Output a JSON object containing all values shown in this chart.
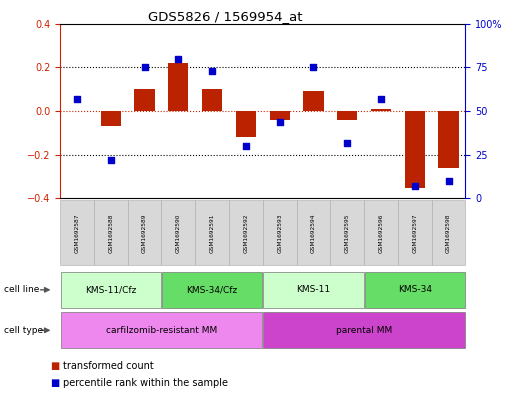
{
  "title": "GDS5826 / 1569954_at",
  "samples": [
    "GSM1692587",
    "GSM1692588",
    "GSM1692589",
    "GSM1692590",
    "GSM1692591",
    "GSM1692592",
    "GSM1692593",
    "GSM1692594",
    "GSM1692595",
    "GSM1692596",
    "GSM1692597",
    "GSM1692598"
  ],
  "bar_values": [
    0.0,
    -0.07,
    0.1,
    0.22,
    0.1,
    -0.12,
    -0.04,
    0.09,
    -0.04,
    0.01,
    -0.35,
    -0.26
  ],
  "dot_values": [
    57,
    22,
    75,
    80,
    73,
    30,
    44,
    75,
    32,
    57,
    7,
    10
  ],
  "bar_color": "#bb2200",
  "dot_color": "#0000cc",
  "ylim_left": [
    -0.4,
    0.4
  ],
  "ylim_right": [
    0,
    100
  ],
  "yticks_left": [
    -0.4,
    -0.2,
    0.0,
    0.2,
    0.4
  ],
  "yticks_right": [
    0,
    25,
    50,
    75,
    100
  ],
  "ytick_labels_right": [
    "0",
    "25",
    "50",
    "75",
    "100%"
  ],
  "cell_line_groups": [
    {
      "label": "KMS-11/Cfz",
      "start": 0,
      "end": 3,
      "color": "#ccffcc"
    },
    {
      "label": "KMS-34/Cfz",
      "start": 3,
      "end": 6,
      "color": "#66dd66"
    },
    {
      "label": "KMS-11",
      "start": 6,
      "end": 9,
      "color": "#ccffcc"
    },
    {
      "label": "KMS-34",
      "start": 9,
      "end": 12,
      "color": "#66dd66"
    }
  ],
  "cell_type_groups": [
    {
      "label": "carfilzomib-resistant MM",
      "start": 0,
      "end": 6,
      "color": "#ee88ee"
    },
    {
      "label": "parental MM",
      "start": 6,
      "end": 12,
      "color": "#cc44cc"
    }
  ],
  "legend_items": [
    {
      "label": "transformed count",
      "color": "#bb2200"
    },
    {
      "label": "percentile rank within the sample",
      "color": "#0000cc"
    }
  ],
  "hline_color": "#cc2200",
  "dotted_line_color": "#000000",
  "bg_color": "#ffffff"
}
